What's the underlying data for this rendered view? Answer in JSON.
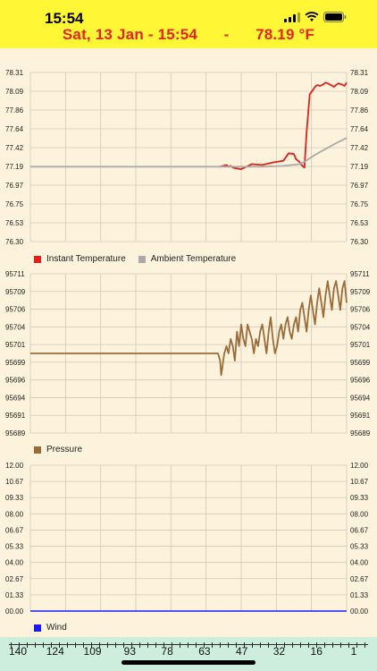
{
  "status_bar": {
    "time": "15:54",
    "signal_icon": "signal-bars-icon",
    "wifi_icon": "wifi-icon",
    "battery_icon": "battery-icon"
  },
  "header": {
    "date_time": "Sat, 13 Jan - 15:54",
    "separator": "-",
    "temperature": "78.19 °F"
  },
  "chart_data": [
    {
      "type": "line",
      "y_ticks": [
        "78.31",
        "78.09",
        "77.86",
        "77.64",
        "77.42",
        "77.19",
        "76.97",
        "76.75",
        "76.53",
        "76.30"
      ],
      "ylim": [
        76.3,
        78.31
      ],
      "series": [
        {
          "name": "Instant Temperature",
          "color": "#e0201c",
          "x": [
            0,
            10,
            20,
            30,
            40,
            50,
            60,
            70,
            80,
            90,
            100,
            110,
            120,
            130,
            140,
            150,
            160,
            170,
            175,
            180,
            183,
            186,
            188,
            190,
            192,
            195,
            200,
            205,
            210,
            220,
            230,
            240,
            245,
            250,
            252,
            255,
            258,
            260,
            262,
            265,
            268,
            270,
            272,
            275,
            278,
            280,
            282,
            285,
            288,
            290,
            292,
            295,
            298,
            300
          ],
          "y": [
            null,
            null,
            null,
            null,
            null,
            null,
            null,
            null,
            null,
            null,
            null,
            null,
            null,
            null,
            null,
            null,
            null,
            null,
            null,
            77.19,
            77.2,
            77.21,
            77.19,
            77.2,
            77.18,
            77.17,
            77.16,
            77.19,
            77.22,
            77.21,
            77.24,
            77.26,
            77.35,
            77.34,
            77.28,
            77.25,
            77.2,
            77.18,
            77.6,
            78.05,
            78.1,
            78.14,
            78.16,
            78.15,
            78.17,
            78.19,
            78.18,
            78.16,
            78.14,
            78.16,
            78.18,
            78.17,
            78.15,
            78.19
          ]
        },
        {
          "name": "Ambient Temperature",
          "color": "#aaaaaa",
          "x": [
            0,
            60,
            120,
            180,
            200,
            220,
            240,
            255,
            260,
            270,
            280,
            290,
            300
          ],
          "y": [
            77.19,
            77.19,
            77.19,
            77.19,
            77.19,
            77.19,
            77.2,
            77.22,
            77.25,
            77.33,
            77.4,
            77.47,
            77.53
          ]
        }
      ]
    },
    {
      "type": "line",
      "y_ticks": [
        "95711",
        "95709",
        "95706",
        "95704",
        "95701",
        "95699",
        "95696",
        "95694",
        "95691",
        "95689"
      ],
      "ylim": [
        95689,
        95711
      ],
      "series": [
        {
          "name": "Pressure",
          "color": "#9c6b3a",
          "x": [
            0,
            40,
            80,
            120,
            160,
            178,
            180,
            181,
            182,
            183,
            184,
            186,
            188,
            190,
            192,
            194,
            196,
            198,
            200,
            202,
            204,
            206,
            208,
            210,
            212,
            214,
            216,
            218,
            220,
            222,
            224,
            226,
            228,
            230,
            232,
            234,
            236,
            238,
            240,
            242,
            244,
            246,
            248,
            250,
            252,
            254,
            256,
            258,
            260,
            262,
            264,
            266,
            268,
            270,
            272,
            274,
            276,
            278,
            280,
            282,
            284,
            286,
            288,
            290,
            292,
            294,
            296,
            298,
            300
          ],
          "y": [
            95700,
            95700,
            95700,
            95700,
            95700,
            95700,
            95699,
            95697,
            95698,
            95699,
            95700,
            95701,
            95700,
            95702,
            95701,
            95699,
            95703,
            95701,
            95704,
            95702,
            95701,
            95704,
            95703,
            95702,
            95700,
            95702,
            95701,
            95703,
            95704,
            95702,
            95700,
            95703,
            95705,
            95702,
            95700,
            95701,
            95703,
            95704,
            95702,
            95704,
            95705,
            95703,
            95702,
            95704,
            95705,
            95703,
            95706,
            95707,
            95705,
            95703,
            95706,
            95708,
            95706,
            95704,
            95707,
            95709,
            95707,
            95705,
            95708,
            95710,
            95708,
            95706,
            95709,
            95710,
            95708,
            95706,
            95709,
            95710,
            95707
          ]
        }
      ]
    },
    {
      "type": "line",
      "y_ticks": [
        "12.00",
        "10.67",
        "09.33",
        "08.00",
        "06.67",
        "05.33",
        "04.00",
        "02.67",
        "01.33",
        "00.00"
      ],
      "ylim": [
        0,
        12
      ],
      "series": [
        {
          "name": "Wind",
          "color": "#1a1aff",
          "x": [
            0,
            300
          ],
          "y": [
            0,
            0
          ]
        }
      ]
    }
  ],
  "timeline": {
    "labels": [
      "140",
      "124",
      "109",
      "93",
      "78",
      "63",
      "47",
      "32",
      "16",
      "1"
    ]
  },
  "colors": {
    "header_bg": "#fff736",
    "page_bg": "#fdf3dc",
    "accent_red": "#e3261d",
    "timeline_bg": "#cdeedd"
  }
}
